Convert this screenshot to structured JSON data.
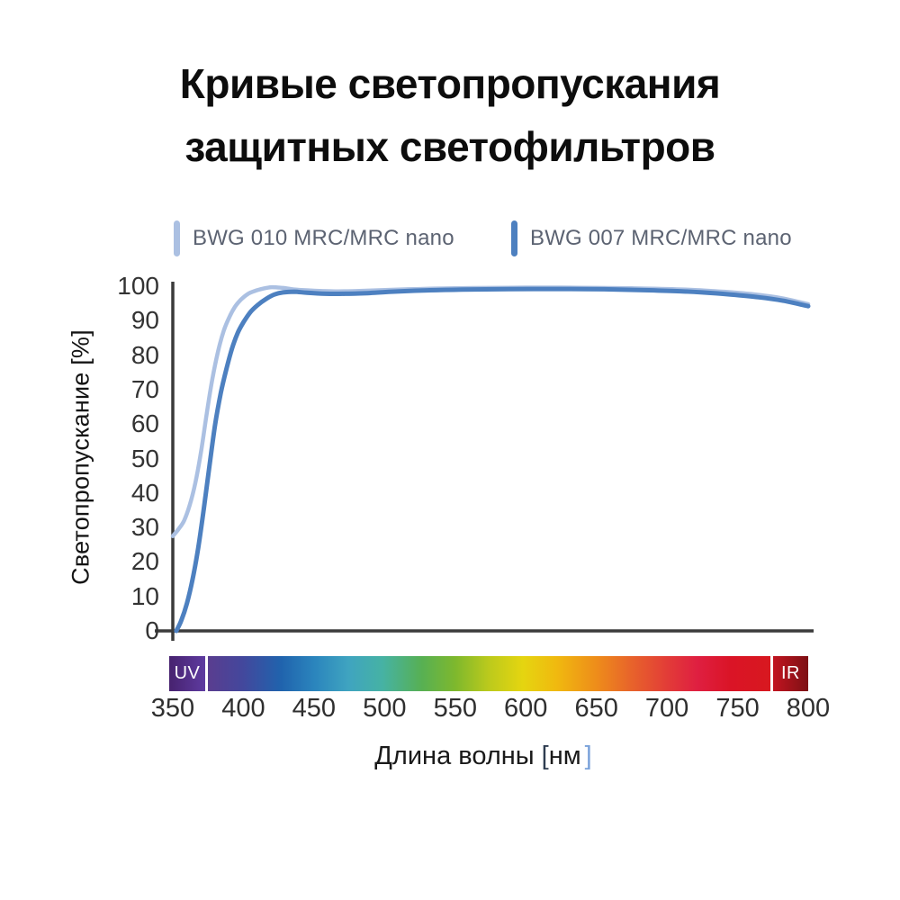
{
  "title": {
    "line1": "Кривые светопропускания",
    "line2": "защитных светофильтров"
  },
  "colors": {
    "background": "#ffffff",
    "axis": "#3b3b3b",
    "title_text": "#0d0d0d",
    "legend_text": "#5c6372",
    "tick_text": "#333333",
    "series_light": "#abc0e2",
    "series_dark": "#4d80c0",
    "uv_gradient": [
      "#47226f",
      "#5e3ba0"
    ],
    "ir_gradient": [
      "#c21420",
      "#7d1014"
    ],
    "xlabel_bracket_close": "#7aa2da"
  },
  "chart_data": {
    "type": "line",
    "title": "Кривые светопропускания защитных светофильтров",
    "xlabel": "Длина волны [нм]",
    "xlabel_parts": {
      "text": "Длина волны",
      "bracket_open": "[",
      "unit": "нм",
      "bracket_close": "]"
    },
    "ylabel": "Светопропускание [%]",
    "xlim": [
      350,
      800
    ],
    "ylim": [
      0,
      100
    ],
    "x_ticks": [
      350,
      400,
      450,
      500,
      550,
      600,
      650,
      700,
      750,
      800
    ],
    "y_ticks": [
      0,
      10,
      20,
      30,
      40,
      50,
      60,
      70,
      80,
      90,
      100
    ],
    "grid": false,
    "legend_position": "top",
    "series": [
      {
        "name": "BWG 010 MRC/MRC nano",
        "color": "#abc0e2",
        "points": [
          [
            350,
            27.5
          ],
          [
            354,
            29.5
          ],
          [
            358,
            32
          ],
          [
            362,
            36.5
          ],
          [
            366,
            43
          ],
          [
            370,
            52
          ],
          [
            374,
            63
          ],
          [
            378,
            73
          ],
          [
            382,
            81
          ],
          [
            386,
            87
          ],
          [
            390,
            91
          ],
          [
            394,
            94
          ],
          [
            398,
            96
          ],
          [
            403,
            97.7
          ],
          [
            408,
            98.6
          ],
          [
            414,
            99.3
          ],
          [
            420,
            99.7
          ],
          [
            428,
            99.5
          ],
          [
            437,
            99.0
          ],
          [
            450,
            98.7
          ],
          [
            465,
            98.5
          ],
          [
            480,
            98.6
          ],
          [
            500,
            98.9
          ],
          [
            525,
            99.2
          ],
          [
            550,
            99.4
          ],
          [
            575,
            99.5
          ],
          [
            600,
            99.6
          ],
          [
            625,
            99.6
          ],
          [
            650,
            99.5
          ],
          [
            675,
            99.4
          ],
          [
            700,
            99.2
          ],
          [
            720,
            98.9
          ],
          [
            740,
            98.4
          ],
          [
            760,
            97.7
          ],
          [
            780,
            96.6
          ],
          [
            800,
            94.8
          ]
        ]
      },
      {
        "name": "BWG 007 MRC/MRC nano",
        "color": "#4d80c0",
        "points": [
          [
            352.5,
            0
          ],
          [
            356,
            3
          ],
          [
            360,
            8
          ],
          [
            364,
            15
          ],
          [
            368,
            24
          ],
          [
            372,
            35.5
          ],
          [
            376,
            48
          ],
          [
            380,
            60
          ],
          [
            384,
            69
          ],
          [
            388,
            76
          ],
          [
            392,
            82
          ],
          [
            396,
            86.5
          ],
          [
            400,
            89.5
          ],
          [
            405,
            92.5
          ],
          [
            410,
            94.5
          ],
          [
            416,
            96.3
          ],
          [
            422,
            97.6
          ],
          [
            428,
            98.2
          ],
          [
            436,
            98.4
          ],
          [
            445,
            98.1
          ],
          [
            458,
            97.8
          ],
          [
            472,
            97.8
          ],
          [
            488,
            98.0
          ],
          [
            505,
            98.4
          ],
          [
            530,
            98.8
          ],
          [
            555,
            99.0
          ],
          [
            580,
            99.1
          ],
          [
            605,
            99.2
          ],
          [
            630,
            99.2
          ],
          [
            655,
            99.1
          ],
          [
            680,
            98.9
          ],
          [
            705,
            98.6
          ],
          [
            725,
            98.2
          ],
          [
            745,
            97.6
          ],
          [
            765,
            96.8
          ],
          [
            782,
            95.8
          ],
          [
            800,
            94.2
          ]
        ]
      }
    ],
    "spectrum_bar": {
      "uv_label": "UV",
      "ir_label": "IR",
      "gradient_stops": [
        {
          "pos": 0,
          "color": "#5a3d8f"
        },
        {
          "pos": 6,
          "color": "#44479c"
        },
        {
          "pos": 13,
          "color": "#2063ad"
        },
        {
          "pos": 19,
          "color": "#2b85bd"
        },
        {
          "pos": 25,
          "color": "#3fa4c0"
        },
        {
          "pos": 31,
          "color": "#46b2a4"
        },
        {
          "pos": 38,
          "color": "#57b053"
        },
        {
          "pos": 44,
          "color": "#7eb82d"
        },
        {
          "pos": 50,
          "color": "#bcca1c"
        },
        {
          "pos": 56,
          "color": "#e5d510"
        },
        {
          "pos": 62,
          "color": "#f0b90f"
        },
        {
          "pos": 69,
          "color": "#ee8d1a"
        },
        {
          "pos": 75,
          "color": "#e8652a"
        },
        {
          "pos": 82,
          "color": "#e23a38"
        },
        {
          "pos": 87,
          "color": "#df1f41"
        },
        {
          "pos": 93,
          "color": "#da1426"
        },
        {
          "pos": 100,
          "color": "#d8181f"
        }
      ]
    }
  }
}
